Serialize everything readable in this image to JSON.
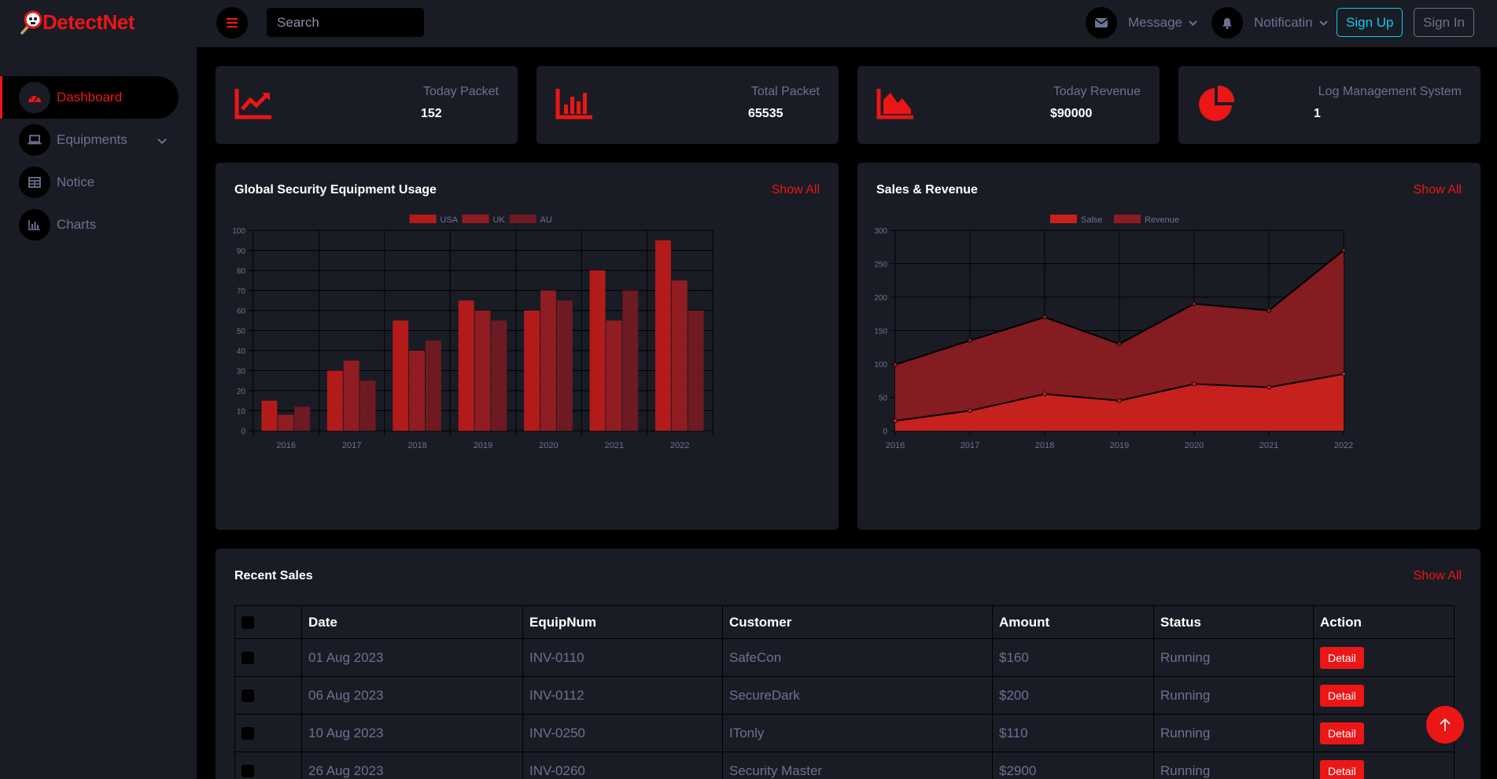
{
  "brand": {
    "name": "DetectNet",
    "accent": "#EB1616",
    "bg_panel": "#191C24",
    "bg_base": "#000000",
    "text_muted": "#6C7293"
  },
  "sidebar": {
    "items": [
      {
        "label": "Dashboard",
        "icon": "gauge-icon",
        "active": true
      },
      {
        "label": "Equipments",
        "icon": "laptop-icon",
        "has_dropdown": true
      },
      {
        "label": "Notice",
        "icon": "table-icon"
      },
      {
        "label": "Charts",
        "icon": "chart-icon"
      }
    ]
  },
  "topbar": {
    "search_placeholder": "Search",
    "message_label": "Message",
    "notification_label": "Notificatin",
    "signup_label": "Sign Up",
    "signin_label": "Sign In"
  },
  "stats": [
    {
      "label": "Today Packet",
      "value": "152",
      "icon": "chart-line-icon"
    },
    {
      "label": "Total Packet",
      "value": "65535",
      "icon": "chart-bar-icon"
    },
    {
      "label": "Today Revenue",
      "value": "$90000",
      "icon": "chart-area-icon"
    },
    {
      "label": "Log Management System",
      "value": "1",
      "icon": "chart-pie-icon"
    }
  ],
  "equipment_panel": {
    "title": "Global Security Equipment Usage",
    "show_all": "Show All"
  },
  "sales_panel": {
    "title": "Sales & Revenue",
    "show_all": "Show All"
  },
  "recent_sales": {
    "title": "Recent Sales",
    "show_all": "Show All",
    "headers": [
      "Date",
      "EquipNum",
      "Customer",
      "Amount",
      "Status",
      "Action"
    ],
    "rows": [
      {
        "date": "01 Aug 2023",
        "equip": "INV-0110",
        "customer": "SafeCon",
        "amount": "$160",
        "status": "Running",
        "action": "Detail"
      },
      {
        "date": "06 Aug 2023",
        "equip": "INV-0112",
        "customer": "SecureDark",
        "amount": "$200",
        "status": "Running",
        "action": "Detail"
      },
      {
        "date": "10 Aug 2023",
        "equip": "INV-0250",
        "customer": "ITonly",
        "amount": "$110",
        "status": "Running",
        "action": "Detail"
      },
      {
        "date": "26 Aug 2023",
        "equip": "INV-0260",
        "customer": "Security Master",
        "amount": "$2900",
        "status": "Running",
        "action": "Detail"
      }
    ]
  },
  "chart_data": [
    {
      "type": "bar",
      "title": "",
      "categories": [
        "2016",
        "2017",
        "2018",
        "2019",
        "2020",
        "2021",
        "2022"
      ],
      "series": [
        {
          "name": "USA",
          "values": [
            15,
            30,
            55,
            65,
            60,
            80,
            95
          ],
          "color": "#B31B1B"
        },
        {
          "name": "UK",
          "values": [
            8,
            35,
            40,
            60,
            70,
            55,
            75
          ],
          "color": "#911C22"
        },
        {
          "name": "AU",
          "values": [
            12,
            25,
            45,
            55,
            65,
            70,
            60
          ],
          "color": "#6E1A22"
        }
      ],
      "ylim": [
        0,
        100
      ],
      "yticks": [
        0,
        10,
        20,
        30,
        40,
        50,
        60,
        70,
        80,
        90,
        100
      ],
      "legend": "top-center",
      "grid": true
    },
    {
      "type": "area",
      "title": "",
      "x": [
        "2016",
        "2017",
        "2018",
        "2019",
        "2020",
        "2021",
        "2022"
      ],
      "series": [
        {
          "name": "Salse",
          "values": [
            15,
            30,
            55,
            45,
            70,
            65,
            85
          ],
          "color": "#C9221D"
        },
        {
          "name": "Revenue",
          "values": [
            99,
            135,
            170,
            130,
            190,
            180,
            270
          ],
          "color": "#8A1C22"
        }
      ],
      "ylim": [
        0,
        300
      ],
      "yticks": [
        0,
        50,
        100,
        150,
        200,
        250,
        300
      ],
      "legend": "top-center",
      "grid": true
    }
  ]
}
